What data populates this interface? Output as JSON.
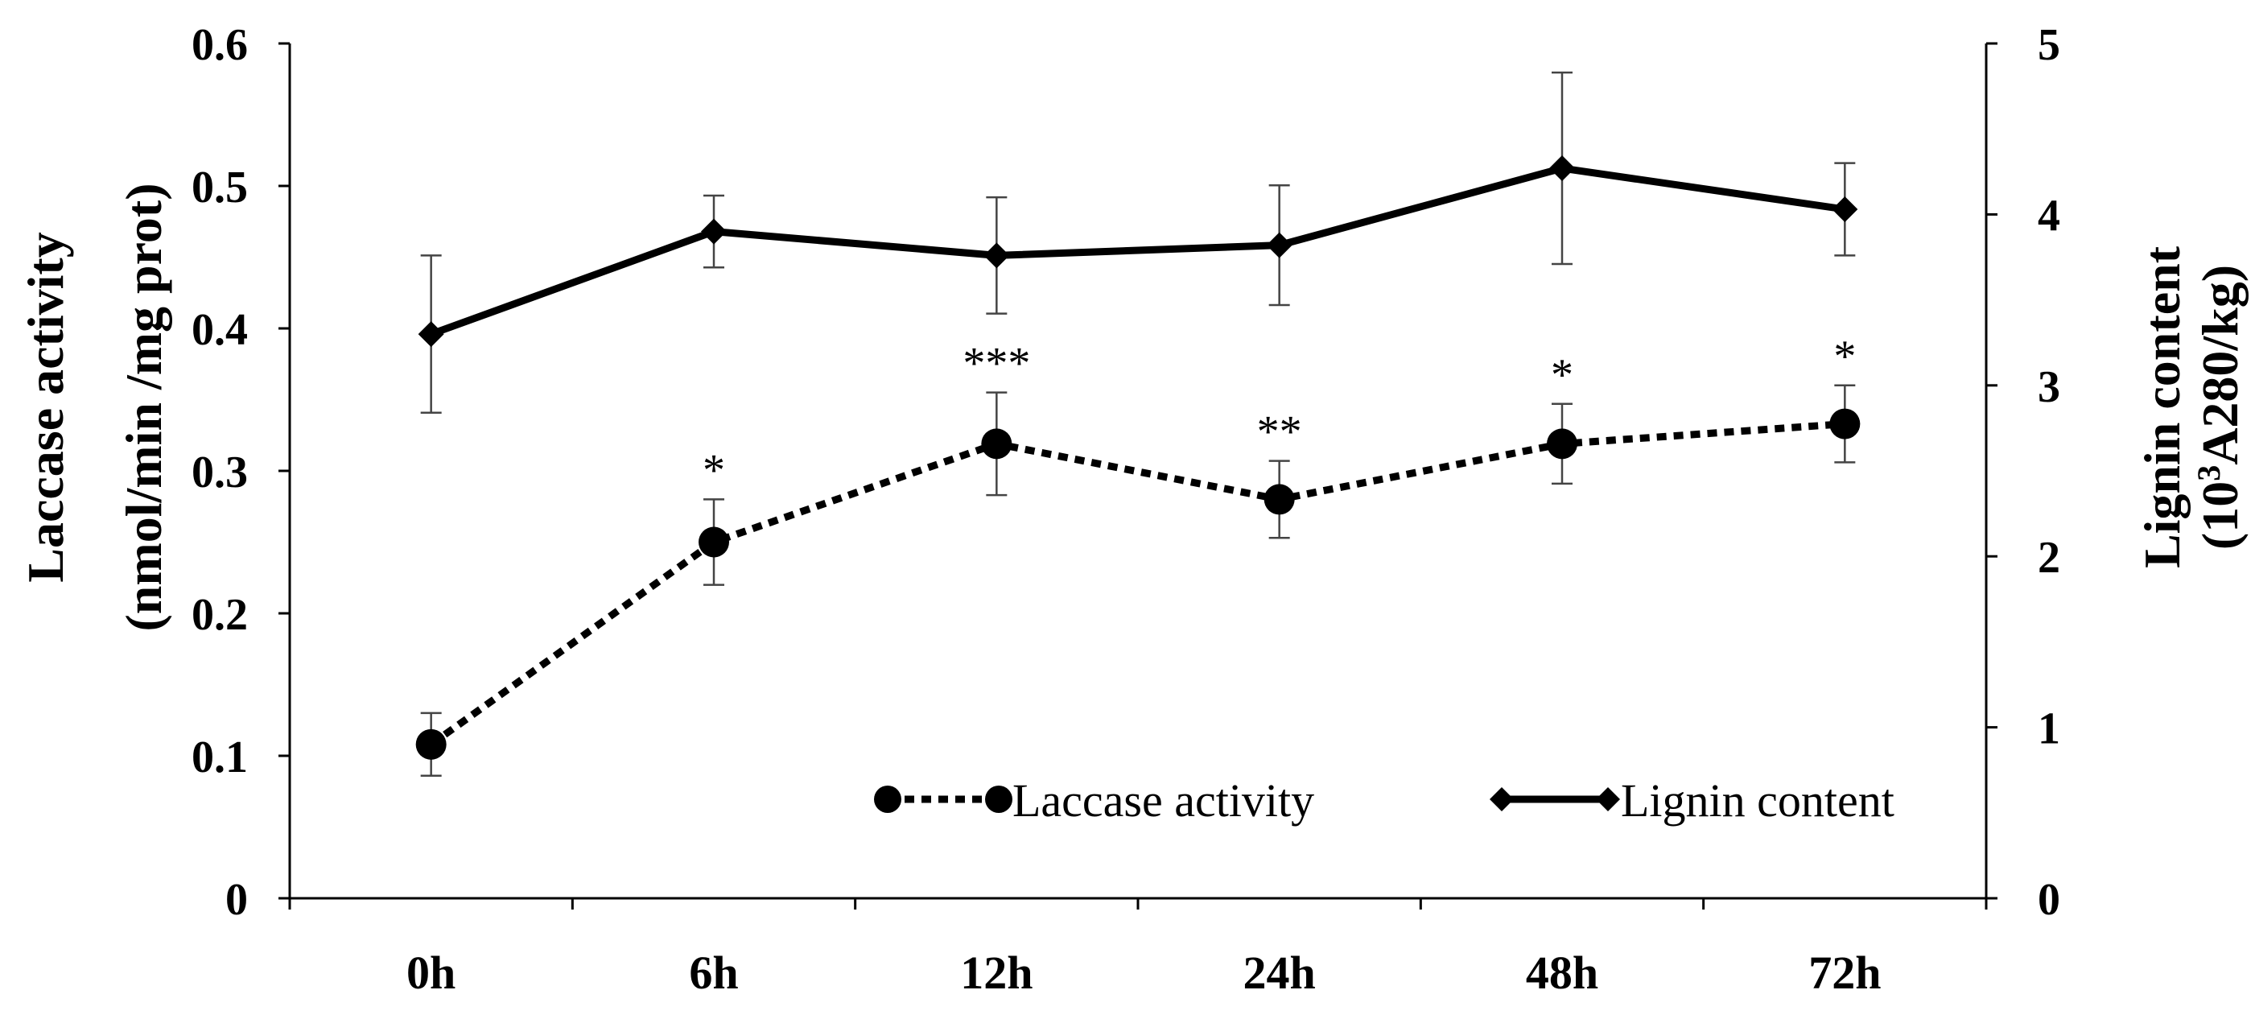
{
  "chart_data": {
    "type": "line",
    "categories": [
      "0h",
      "6h",
      "12h",
      "24h",
      "48h",
      "72h"
    ],
    "y_left": {
      "label_line1": "Laccase activity",
      "label_line2": "(nmol/min /mg prot)",
      "ticks": [
        "0",
        "0.1",
        "0.2",
        "0.3",
        "0.4",
        "0.5",
        "0.6"
      ],
      "ylim": [
        0,
        0.6
      ]
    },
    "y_right": {
      "label_line1": "Lignin content",
      "label_line2_prefix": "(10",
      "label_line2_sup": "3",
      "label_line2_suffix": "A280/kg)",
      "ticks": [
        "0",
        "1",
        "2",
        "3",
        "4",
        "5"
      ],
      "ylim": [
        0,
        5
      ]
    },
    "series": [
      {
        "name": "Laccase activity",
        "axis": "left",
        "style": "dotted",
        "marker": "circle",
        "values": [
          0.108,
          0.25,
          0.319,
          0.28,
          0.319,
          0.333
        ],
        "errors": [
          0.022,
          0.03,
          0.036,
          0.027,
          0.028,
          0.027
        ],
        "significance": [
          "",
          "*",
          "***",
          "**",
          "*",
          "*"
        ]
      },
      {
        "name": "Lignin content",
        "axis": "right",
        "style": "solid",
        "marker": "diamond",
        "values": [
          3.3,
          3.9,
          3.76,
          3.82,
          4.27,
          4.03
        ],
        "errors": [
          0.46,
          0.21,
          0.34,
          0.35,
          0.56,
          0.27
        ]
      }
    ],
    "legend": {
      "position": "bottom-right",
      "entries": [
        "Laccase activity",
        "Lignin content"
      ]
    }
  }
}
